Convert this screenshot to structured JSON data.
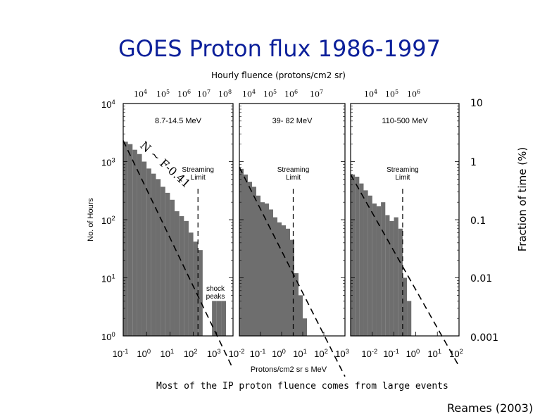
{
  "slide": {
    "title": "GOES Proton flux 1986-1997",
    "fluence_axis_label": "Hourly fluence (protons/cm2 sr)",
    "footer": "Most of the IP proton fluence comes from large events",
    "citation": "Reames (2003)"
  },
  "top_ticks": [
    {
      "base": "10",
      "exp": "4"
    },
    {
      "base": "10",
      "exp": "5"
    },
    {
      "base": "10",
      "exp": "6"
    },
    {
      "base": "10",
      "exp": "7"
    },
    {
      "base": "10",
      "exp": "8"
    },
    {
      "base": "10",
      "exp": "4"
    },
    {
      "base": "10",
      "exp": "5"
    },
    {
      "base": "10",
      "exp": "6"
    },
    {
      "base": "10",
      "exp": "7"
    },
    {
      "base": "10",
      "exp": "4"
    },
    {
      "base": "10",
      "exp": "5"
    },
    {
      "base": "10",
      "exp": "6"
    }
  ],
  "right_axis": {
    "label": "Fraction of time (%)",
    "ticks": [
      "10",
      "1",
      "0.1",
      "0.01",
      "0.001"
    ]
  },
  "colors": {
    "bars": "#6e6e6e",
    "title": "#0b1f9a"
  },
  "chart_data": {
    "type": "bar",
    "ylabel": "No. of Hours",
    "xlabel": "Protons/cm2 sr s MeV",
    "y_scale": "log",
    "ylim": [
      1,
      10000
    ],
    "y_ticks": [
      "10",
      "10",
      "10",
      "10",
      "10"
    ],
    "y_tick_exponents": [
      "4",
      "3",
      "2",
      "1",
      "0"
    ],
    "fit_label": "N ~ F-0.41",
    "streaming_label": "Streaming Limit",
    "shock_label": "shock peaks",
    "panels": [
      {
        "label": "8.7-14.5 MeV",
        "x_ticks": [
          "10",
          "10",
          "10",
          "10",
          "10"
        ],
        "x_tick_exponents": [
          "-1",
          "0",
          "1",
          "2",
          "3"
        ],
        "xlim_log10": [
          -1,
          3.7
        ],
        "bin_edges_log10": [
          -1.0,
          -0.8,
          -0.6,
          -0.4,
          -0.2,
          0.0,
          0.2,
          0.4,
          0.6,
          0.8,
          1.0,
          1.2,
          1.4,
          1.6,
          1.8,
          2.0,
          2.2,
          2.4,
          2.6,
          2.8,
          3.0,
          3.2,
          3.4
        ],
        "counts": [
          2200,
          2000,
          1600,
          1350,
          1000,
          760,
          620,
          500,
          370,
          290,
          220,
          140,
          115,
          95,
          60,
          42,
          30,
          0,
          0,
          4,
          4,
          4
        ],
        "streaming_limit_log10": 2.2,
        "fit": {
          "x0_log10": -1.0,
          "x1_log10": 3.7,
          "y0": 2300,
          "y1": 0.27
        }
      },
      {
        "label": "39- 82 MeV",
        "x_ticks": [
          "10",
          "10",
          "10",
          "10",
          "10",
          "10"
        ],
        "x_tick_exponents": [
          "-2",
          "-1",
          "0",
          "1",
          "2",
          "3"
        ],
        "xlim_log10": [
          -2,
          3
        ],
        "bin_edges_log10": [
          -2.0,
          -1.8,
          -1.6,
          -1.4,
          -1.2,
          -1.0,
          -0.8,
          -0.6,
          -0.4,
          -0.2,
          0.0,
          0.2,
          0.4,
          0.6,
          0.8,
          1.0,
          1.2,
          1.4,
          1.6,
          1.8
        ],
        "counts": [
          750,
          600,
          450,
          370,
          260,
          200,
          190,
          150,
          110,
          90,
          80,
          70,
          45,
          12,
          5,
          2,
          1,
          1,
          0
        ],
        "streaming_limit_log10": 0.55,
        "fit": {
          "x0_log10": -2.0,
          "x1_log10": 3.0,
          "y0": 800,
          "y1": 0.2
        }
      },
      {
        "label": "110-500 MeV",
        "x_ticks": [
          "10",
          "10",
          "10",
          "10",
          "10"
        ],
        "x_tick_exponents": [
          "-2",
          "-1",
          "0",
          "1",
          "2"
        ],
        "xlim_log10": [
          -3,
          2
        ],
        "bin_edges_log10": [
          -3.0,
          -2.8,
          -2.6,
          -2.4,
          -2.2,
          -2.0,
          -1.8,
          -1.6,
          -1.4,
          -1.2,
          -1.0,
          -0.8,
          -0.6,
          -0.4,
          -0.2,
          0.0
        ],
        "counts": [
          600,
          550,
          420,
          320,
          260,
          190,
          170,
          200,
          120,
          95,
          110,
          70,
          10,
          4,
          1
        ],
        "streaming_limit_log10": -0.6,
        "fit": {
          "x0_log10": -3.0,
          "x1_log10": 2.0,
          "y0": 600,
          "y1": 0.3
        }
      }
    ]
  }
}
